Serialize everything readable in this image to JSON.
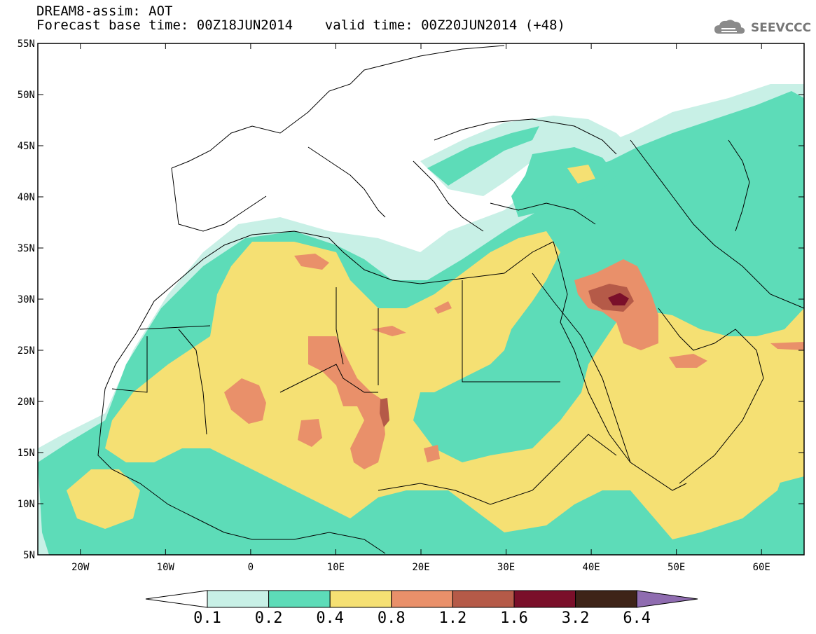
{
  "title": {
    "line1": "DREAM8-assim: AOT",
    "line2": "Forecast base time: 00Z18JUN2014    valid time: 00Z20JUN2014 (+48)"
  },
  "logo": {
    "text": "SEEVCCC",
    "icon": "cloud-icon"
  },
  "map": {
    "lat_labels": [
      "55N",
      "50N",
      "45N",
      "40N",
      "35N",
      "30N",
      "25N",
      "20N",
      "15N",
      "10N",
      "5N"
    ],
    "lon_labels": [
      "20W",
      "10W",
      "0",
      "10E",
      "20E",
      "30E",
      "40E",
      "50E",
      "60E"
    ],
    "lat_range": [
      5,
      55
    ],
    "lon_range": [
      -25,
      65
    ]
  },
  "colorbar": {
    "labels": [
      "0.1",
      "0.2",
      "0.4",
      "0.8",
      "1.2",
      "1.6",
      "3.2",
      "6.4"
    ],
    "colors": [
      "#ffffff",
      "#c8f0e6",
      "#5ddcb8",
      "#f5e073",
      "#e9906a",
      "#b55a48",
      "#7a0f2a",
      "#3e2418",
      "#8f6cb0"
    ]
  },
  "colors": {
    "c1": "#c8f0e6",
    "c2": "#5ddcb8",
    "c3": "#f5e073",
    "c4": "#e9906a",
    "c5": "#b55a48",
    "c6": "#7a0f2a"
  }
}
